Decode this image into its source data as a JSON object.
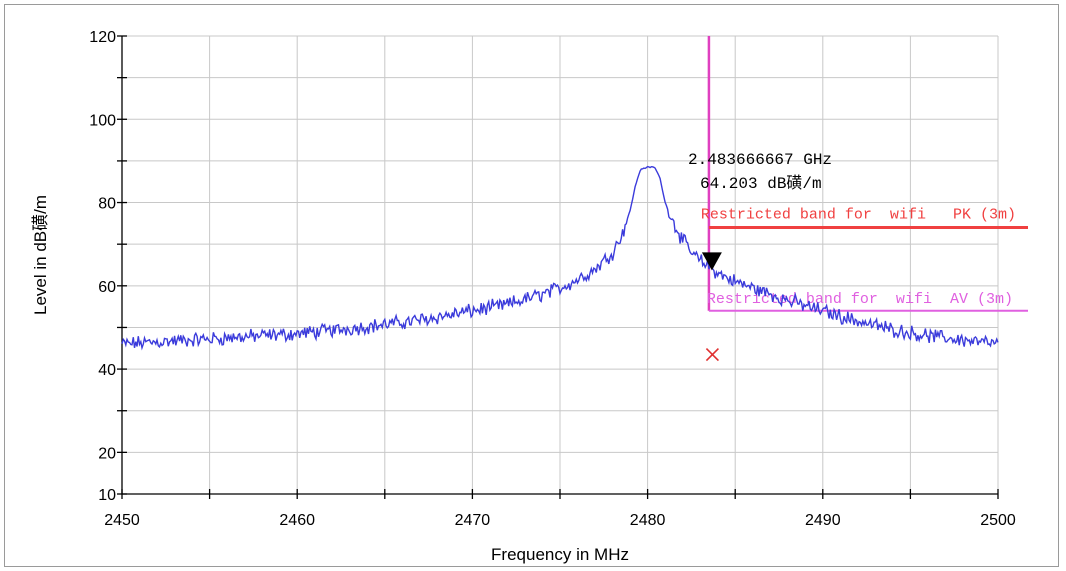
{
  "chart_data": {
    "type": "line",
    "title": "",
    "xlabel": "Frequency in MHz",
    "ylabel": "Level in dB磺/m",
    "xlim": [
      2450,
      2500
    ],
    "ylim": [
      10,
      120
    ],
    "x_ticks": [
      2450,
      2460,
      2470,
      2480,
      2490,
      2500
    ],
    "y_ticks": [
      10,
      20,
      40,
      60,
      80,
      100,
      120
    ],
    "grid": true,
    "series": [
      {
        "color": "#3b3bdb",
        "x": [
          2450,
          2452,
          2454,
          2456,
          2458,
          2460,
          2462,
          2464,
          2466,
          2468,
          2470,
          2472,
          2474,
          2475,
          2476,
          2477,
          2478,
          2478.5,
          2479,
          2479.3,
          2479.6,
          2480,
          2480.4,
          2480.7,
          2481,
          2481.5,
          2482,
          2482.5,
          2483,
          2483.67,
          2484,
          2485,
          2486,
          2488,
          2490,
          2492,
          2494,
          2496,
          2498,
          2500
        ],
        "y": [
          46,
          46.5,
          47,
          47.5,
          48,
          48.5,
          49.3,
          50.2,
          51.2,
          52.5,
          54,
          55.5,
          58,
          59.5,
          61.5,
          64,
          68,
          72,
          78,
          84,
          88,
          88.5,
          88.5,
          86,
          80,
          75,
          71,
          68,
          66,
          64.2,
          63,
          61,
          59.5,
          56.5,
          54,
          51.5,
          49.5,
          48,
          47,
          46
        ]
      }
    ],
    "limits": [
      {
        "label": "Restricted band for  wifi   PK (3m)",
        "value": 74,
        "x_start": 2483.5,
        "color": "#f04040"
      },
      {
        "label": "Restricted band for  wifi  AV (3m)",
        "value": 54,
        "x_start": 2483.5,
        "color": "#e060e0"
      }
    ],
    "band_edge": {
      "x": 2483.5,
      "y_from": 54,
      "y_to": 120,
      "color": "#e040c0"
    },
    "marker": {
      "x": 2483.67,
      "y": 64.203,
      "line1": "2.483666667 GHz",
      "line2": "64.203 dB磺/m"
    },
    "av_point": {
      "x": 2483.7,
      "y": 43.5,
      "color": "#e03030"
    }
  }
}
